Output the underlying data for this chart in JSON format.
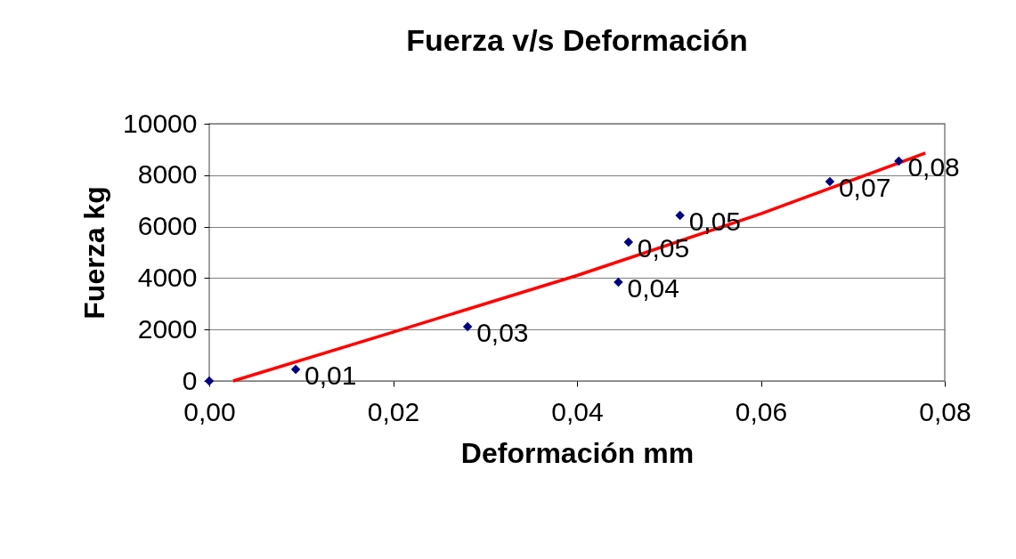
{
  "chart_data": {
    "type": "scatter",
    "title": "Fuerza v/s Deformación",
    "xlabel": "Deformación mm",
    "ylabel": "Fuerza kg",
    "series": [
      {
        "color": "#000080",
        "x": [
          0,
          0.0094,
          0.0281,
          0.0445,
          0.0456,
          0.0512,
          0.0675,
          0.075
        ],
        "values": [
          0,
          450,
          2110,
          3840,
          5400,
          6440,
          7750,
          8550
        ]
      },
      {
        "type": "line",
        "marker": "none",
        "color": "#ff0000",
        "x": [
          0.0026,
          0.02,
          0.04,
          0.06,
          0.0779
        ],
        "values": [
          0,
          1900,
          4100,
          6500,
          8860
        ]
      }
    ],
    "annotations": [
      {
        "text": "0,01",
        "x": 0.0094,
        "y": 450
      },
      {
        "text": "0,03",
        "x": 0.0281,
        "y": 2110
      },
      {
        "text": "0,04",
        "x": 0.0445,
        "y": 3840
      },
      {
        "text": "0,05",
        "x": 0.0456,
        "y": 5400
      },
      {
        "text": "0,05",
        "x": 0.0512,
        "y": 6440
      },
      {
        "text": "0,07",
        "x": 0.0675,
        "y": 7750
      },
      {
        "text": "0,08",
        "x": 0.075,
        "y": 8550
      }
    ],
    "xlim": [
      0,
      0.08
    ],
    "xticks": [
      {
        "value": 0,
        "label": "0,00"
      },
      {
        "value": 0.02,
        "label": "0,02"
      },
      {
        "value": 0.04,
        "label": "0,04"
      },
      {
        "value": 0.06,
        "label": "0,06"
      },
      {
        "value": 0.08,
        "label": "0,08"
      }
    ],
    "ylim": [
      0,
      10000
    ],
    "yticks": [
      0,
      2000,
      4000,
      6000,
      8000,
      10000
    ],
    "grid": "y",
    "marker": "diamond"
  }
}
